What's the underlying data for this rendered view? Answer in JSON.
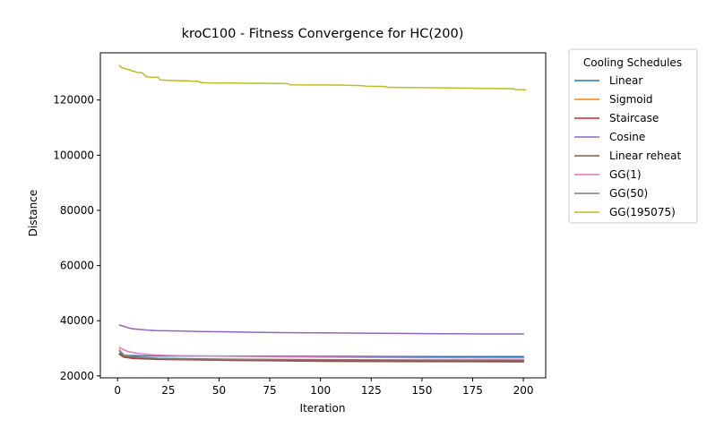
{
  "chart_data": {
    "type": "line",
    "title": "kroC100 - Fitness Convergence for HC(200)",
    "xlabel": "Iteration",
    "ylabel": "Distance",
    "xlim": [
      -8.5,
      211
    ],
    "ylim": [
      19300,
      137100
    ],
    "xticks": [
      0,
      25,
      50,
      75,
      100,
      125,
      150,
      175,
      200
    ],
    "yticks": [
      20000,
      40000,
      60000,
      80000,
      100000,
      120000
    ],
    "grid": false,
    "legend": {
      "title": "Cooling Schedules",
      "placement": "outside-right-top"
    },
    "series": [
      {
        "name": "Linear",
        "color": "#1f77b4",
        "points": [
          [
            1,
            28200
          ],
          [
            3,
            27500
          ],
          [
            5,
            27400
          ],
          [
            10,
            27300
          ],
          [
            20,
            27200
          ],
          [
            50,
            27200
          ],
          [
            100,
            27100
          ],
          [
            150,
            27000
          ],
          [
            200,
            27000
          ]
        ]
      },
      {
        "name": "Sigmoid",
        "color": "#ff7f0e",
        "points": [
          [
            1,
            29500
          ],
          [
            3,
            27400
          ],
          [
            6,
            26700
          ],
          [
            15,
            26300
          ],
          [
            40,
            26000
          ],
          [
            80,
            25800
          ],
          [
            120,
            25600
          ],
          [
            160,
            25500
          ],
          [
            200,
            25500
          ]
        ]
      },
      {
        "name": "Staircase",
        "color": "#d62728",
        "points": [
          [
            1,
            27800
          ],
          [
            3,
            26800
          ],
          [
            8,
            26300
          ],
          [
            20,
            26000
          ],
          [
            50,
            25700
          ],
          [
            100,
            25500
          ],
          [
            150,
            25400
          ],
          [
            200,
            25400
          ]
        ]
      },
      {
        "name": "Cosine",
        "color": "#9467bd",
        "points": [
          [
            1,
            38400
          ],
          [
            3,
            38000
          ],
          [
            5,
            37500
          ],
          [
            7,
            37100
          ],
          [
            10,
            36900
          ],
          [
            15,
            36600
          ],
          [
            20,
            36400
          ],
          [
            30,
            36300
          ],
          [
            40,
            36100
          ],
          [
            50,
            36000
          ],
          [
            60,
            35900
          ],
          [
            80,
            35700
          ],
          [
            100,
            35600
          ],
          [
            120,
            35500
          ],
          [
            140,
            35400
          ],
          [
            160,
            35300
          ],
          [
            180,
            35200
          ],
          [
            200,
            35200
          ]
        ]
      },
      {
        "name": "Linear reheat",
        "color": "#8c564b",
        "points": [
          [
            1,
            28000
          ],
          [
            3,
            26900
          ],
          [
            8,
            26500
          ],
          [
            20,
            26200
          ],
          [
            50,
            25700
          ],
          [
            100,
            25300
          ],
          [
            150,
            25200
          ],
          [
            200,
            25100
          ]
        ]
      },
      {
        "name": "GG(1)",
        "color": "#e377c2",
        "points": [
          [
            1,
            30300
          ],
          [
            3,
            29500
          ],
          [
            5,
            28900
          ],
          [
            8,
            28400
          ],
          [
            12,
            28000
          ],
          [
            18,
            27600
          ],
          [
            25,
            27400
          ],
          [
            40,
            27200
          ],
          [
            60,
            27100
          ],
          [
            100,
            26800
          ],
          [
            150,
            26600
          ],
          [
            200,
            26500
          ]
        ]
      },
      {
        "name": "GG(50)",
        "color": "#7f7f7f",
        "points": [
          [
            1,
            29000
          ],
          [
            3,
            27600
          ],
          [
            8,
            26900
          ],
          [
            20,
            26400
          ],
          [
            50,
            26100
          ],
          [
            100,
            25900
          ],
          [
            150,
            25800
          ],
          [
            200,
            25800
          ]
        ]
      },
      {
        "name": "GG(195075)",
        "color": "#bcbd22",
        "points": [
          [
            1,
            132500
          ],
          [
            2,
            131800
          ],
          [
            4,
            131300
          ],
          [
            6,
            130900
          ],
          [
            8,
            130400
          ],
          [
            10,
            130000
          ],
          [
            12,
            129900
          ],
          [
            13,
            129300
          ],
          [
            14,
            128500
          ],
          [
            16,
            128300
          ],
          [
            20,
            128200
          ],
          [
            21,
            127300
          ],
          [
            25,
            127100
          ],
          [
            30,
            127000
          ],
          [
            35,
            126900
          ],
          [
            40,
            126700
          ],
          [
            41,
            126300
          ],
          [
            45,
            126200
          ],
          [
            60,
            126100
          ],
          [
            80,
            126000
          ],
          [
            84,
            125900
          ],
          [
            85,
            125500
          ],
          [
            110,
            125400
          ],
          [
            120,
            125200
          ],
          [
            123,
            125000
          ],
          [
            132,
            124900
          ],
          [
            133,
            124600
          ],
          [
            150,
            124500
          ],
          [
            160,
            124400
          ],
          [
            175,
            124300
          ],
          [
            180,
            124200
          ],
          [
            195,
            124100
          ],
          [
            196,
            123800
          ],
          [
            201,
            123700
          ]
        ]
      }
    ]
  }
}
